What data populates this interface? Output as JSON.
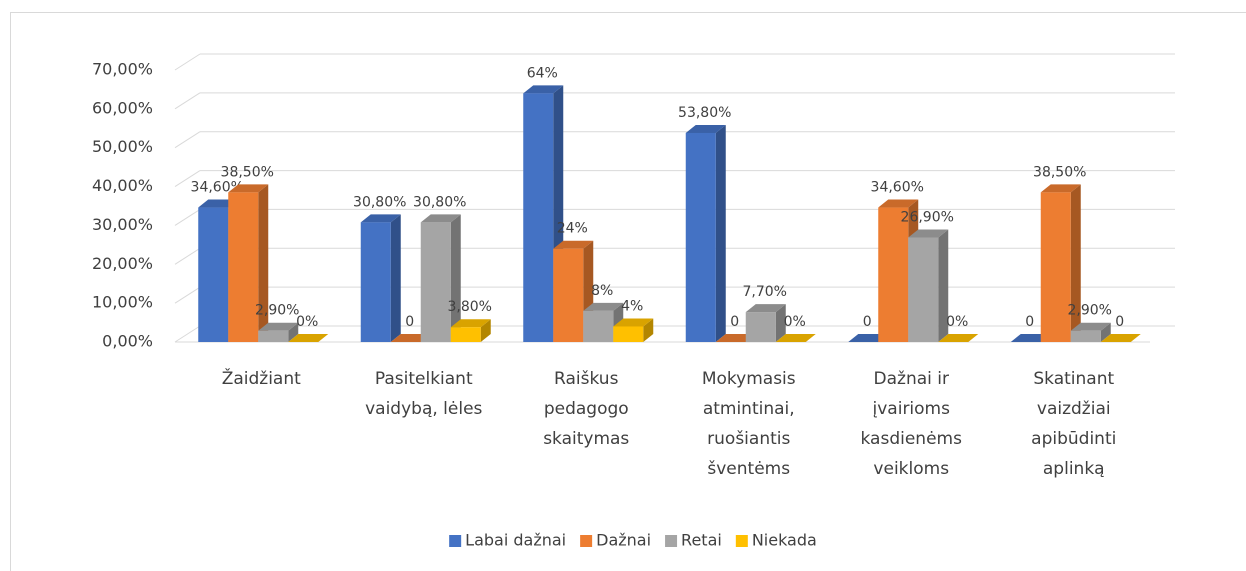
{
  "chart_data": {
    "type": "bar3d",
    "categories": [
      "Žaidžiant",
      "Pasitelkiant vaidybą, lėles",
      "Raiškus pedagogo skaitymas",
      "Mokymasis atmintinai, ruošiantis šventėms",
      "Dažnai ir įvairioms kasdienėms veikloms",
      "Skatinant vaizdžiai apibūdinti aplinką"
    ],
    "series": [
      {
        "name": "Labai dažnai",
        "color": "#4472c4",
        "values": [
          34.6,
          30.8,
          64,
          53.8,
          0,
          0
        ],
        "value_labels": [
          "34,60%",
          "30,80%",
          "64%",
          "53,80%",
          "0",
          "0"
        ]
      },
      {
        "name": "Dažnai",
        "color": "#ed7d31",
        "values": [
          38.5,
          0,
          24,
          0,
          34.6,
          38.5
        ],
        "value_labels": [
          "38,50%",
          "0",
          "24%",
          "0",
          "34,60%",
          "38,50%"
        ]
      },
      {
        "name": "Retai",
        "color": "#a5a5a5",
        "values": [
          2.9,
          30.8,
          8,
          7.7,
          26.9,
          2.9
        ],
        "value_labels": [
          "2,90%",
          "30,80%",
          "8%",
          "7,70%",
          "26,90%",
          "2,90%"
        ]
      },
      {
        "name": "Niekada",
        "color": "#ffc000",
        "values": [
          0,
          3.8,
          4,
          0,
          0,
          0
        ],
        "value_labels": [
          "0%",
          "3,80%",
          "4%",
          "0%",
          "0%",
          "0"
        ]
      }
    ],
    "ylim": [
      0,
      70
    ],
    "yticks": [
      {
        "value": 0,
        "label": "0,00%"
      },
      {
        "value": 10,
        "label": "10,00%"
      },
      {
        "value": 20,
        "label": "20,00%"
      },
      {
        "value": 30,
        "label": "30,00%"
      },
      {
        "value": 40,
        "label": "40,00%"
      },
      {
        "value": 50,
        "label": "50,00%"
      },
      {
        "value": 60,
        "label": "60,00%"
      },
      {
        "value": 70,
        "label": "70,00%"
      }
    ],
    "grid": true,
    "legend": "bottom"
  }
}
